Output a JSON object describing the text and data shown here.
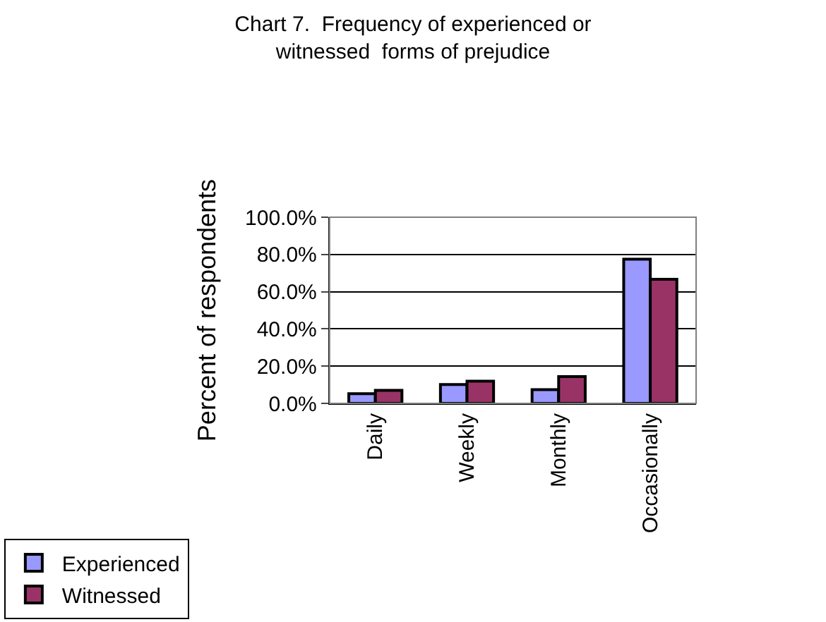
{
  "chart_data": {
    "type": "bar",
    "title": "Chart 7.  Frequency of experienced or\nwitnessed  forms of prejudice",
    "ylabel": "Percent of respondents",
    "categories": [
      "Daily",
      "Weekly",
      "Monthly",
      "Occasionally"
    ],
    "series": [
      {
        "name": "Experienced",
        "color": "#9999ff",
        "values": [
          5.2,
          10.1,
          7.4,
          77.5
        ]
      },
      {
        "name": "Witnessed",
        "color": "#993366",
        "values": [
          7.0,
          11.9,
          14.4,
          66.7
        ]
      }
    ],
    "ylim": [
      0,
      100
    ],
    "yticks": [
      {
        "value": 0,
        "label": "0.0%"
      },
      {
        "value": 20,
        "label": "20.0%"
      },
      {
        "value": 40,
        "label": "40.0%"
      },
      {
        "value": 60,
        "label": "60.0%"
      },
      {
        "value": 80,
        "label": "80.0%"
      },
      {
        "value": 100,
        "label": "100.0%"
      }
    ],
    "grid": "y",
    "legend": "bottom left"
  }
}
